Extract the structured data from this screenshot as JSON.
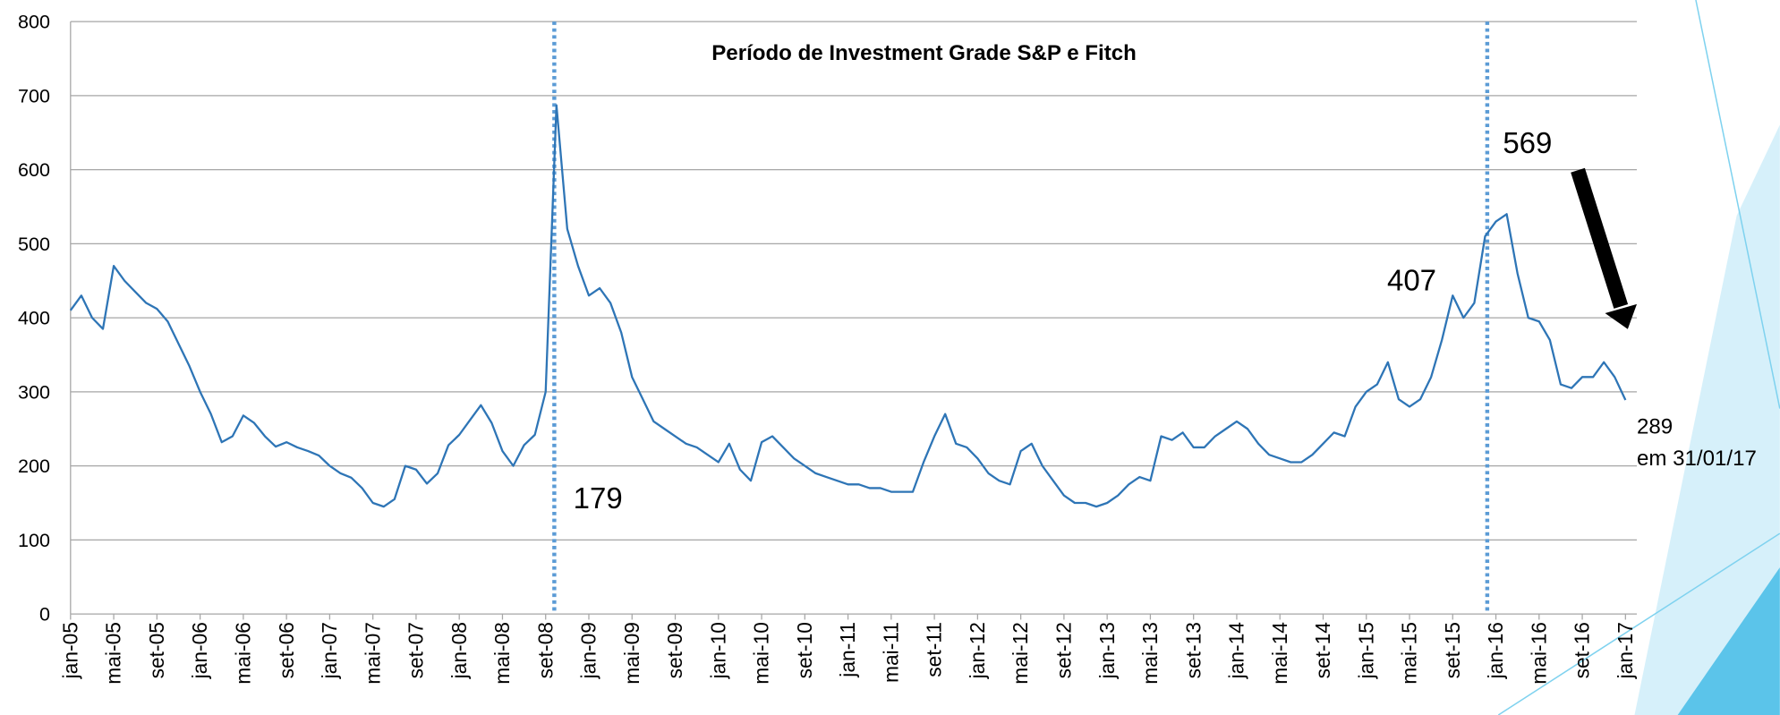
{
  "chart_data": {
    "type": "line",
    "title": "Período de Investment Grade S&P e Fitch",
    "categories": [
      "jan-05",
      null,
      null,
      null,
      "mai-05",
      null,
      null,
      null,
      "set-05",
      null,
      null,
      null,
      "jan-06",
      null,
      null,
      null,
      "mai-06",
      null,
      null,
      null,
      "set-06",
      null,
      null,
      null,
      "jan-07",
      null,
      null,
      null,
      "mai-07",
      null,
      null,
      null,
      "set-07",
      null,
      null,
      null,
      "jan-08",
      null,
      null,
      null,
      "mai-08",
      null,
      null,
      null,
      "set-08",
      null,
      null,
      null,
      "jan-09",
      null,
      null,
      null,
      "mai-09",
      null,
      null,
      null,
      "set-09",
      null,
      null,
      null,
      "jan-10",
      null,
      null,
      null,
      "mai-10",
      null,
      null,
      null,
      "set-10",
      null,
      null,
      null,
      "jan-11",
      null,
      null,
      null,
      "mai-11",
      null,
      null,
      null,
      "set-11",
      null,
      null,
      null,
      "jan-12",
      null,
      null,
      null,
      "mai-12",
      null,
      null,
      null,
      "set-12",
      null,
      null,
      null,
      "jan-13",
      null,
      null,
      null,
      "mai-13",
      null,
      null,
      null,
      "set-13",
      null,
      null,
      null,
      "jan-14",
      null,
      null,
      null,
      "mai-14",
      null,
      null,
      null,
      "set-14",
      null,
      null,
      null,
      "jan-15",
      null,
      null,
      null,
      "mai-15",
      null,
      null,
      null,
      "set-15",
      null,
      null,
      null,
      "jan-16",
      null,
      null,
      null,
      "mai-16",
      null,
      null,
      null,
      "set-16",
      null,
      null,
      null,
      "jan-17"
    ],
    "values": [
      410,
      430,
      400,
      385,
      470,
      450,
      435,
      420,
      412,
      395,
      365,
      335,
      300,
      270,
      232,
      240,
      268,
      258,
      240,
      226,
      232,
      225,
      220,
      214,
      200,
      190,
      184,
      170,
      150,
      145,
      155,
      200,
      195,
      176,
      190,
      228,
      242,
      262,
      282,
      258,
      220,
      200,
      228,
      242,
      300,
      687,
      520,
      470,
      430,
      440,
      420,
      380,
      320,
      290,
      260,
      250,
      240,
      230,
      225,
      215,
      205,
      230,
      195,
      180,
      232,
      240,
      225,
      210,
      200,
      190,
      185,
      180,
      175,
      175,
      170,
      170,
      165,
      165,
      165,
      205,
      240,
      270,
      230,
      225,
      210,
      190,
      180,
      175,
      220,
      230,
      200,
      180,
      160,
      150,
      150,
      145,
      150,
      160,
      175,
      185,
      180,
      240,
      235,
      245,
      225,
      225,
      240,
      250,
      260,
      250,
      230,
      215,
      210,
      205,
      205,
      215,
      230,
      245,
      240,
      280,
      300,
      310,
      340,
      290,
      280,
      290,
      320,
      370,
      430,
      400,
      420,
      510,
      530,
      540,
      460,
      400,
      395,
      370,
      310,
      305,
      320,
      320,
      340,
      320,
      289
    ],
    "color": "#2e75b6",
    "ylim": [
      0,
      800
    ],
    "yticks": [
      0,
      100,
      200,
      300,
      400,
      500,
      600,
      700,
      800
    ],
    "grid": true,
    "vlines": [
      44.8,
      131.2
    ],
    "annotations": [
      "179",
      "407",
      "569",
      "289",
      "em 31/01/17"
    ]
  }
}
